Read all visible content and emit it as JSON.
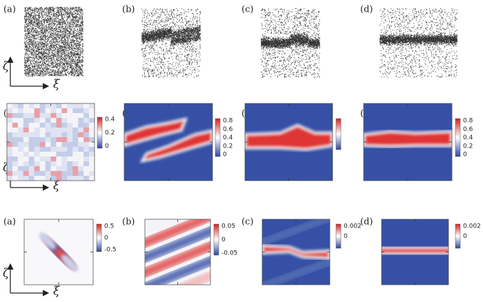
{
  "axis_labels": {
    "vertical": "ζ",
    "horizontal": "ξ"
  },
  "rows": [
    {
      "panels": [
        {
          "label": "(a)"
        },
        {
          "label": "(b)"
        },
        {
          "label": "(c)"
        },
        {
          "label": "(d)"
        }
      ]
    },
    {
      "panels": [
        {
          "label": "(a)",
          "colorbar": [
            "0.4",
            "0.2",
            "0"
          ]
        },
        {
          "label": "(b)",
          "colorbar": [
            "0.8",
            "0.6",
            "0.4",
            "0.2",
            "0"
          ]
        },
        {
          "label": "(c)"
        },
        {
          "label": "(d)",
          "colorbar": [
            "0.8",
            "0.6",
            "0.4",
            "0.2",
            "0"
          ]
        }
      ]
    },
    {
      "panels": [
        {
          "label": "(a)",
          "colorbar": [
            "0.5",
            "0",
            "-0.5"
          ]
        },
        {
          "label": "(b)",
          "colorbar": [
            "0.05",
            "0",
            "-0.05"
          ]
        },
        {
          "label": "(c)",
          "colorbar": [
            "0.002",
            "0"
          ]
        },
        {
          "label": "(d)",
          "colorbar": [
            "0.002",
            "0"
          ]
        }
      ]
    }
  ]
}
